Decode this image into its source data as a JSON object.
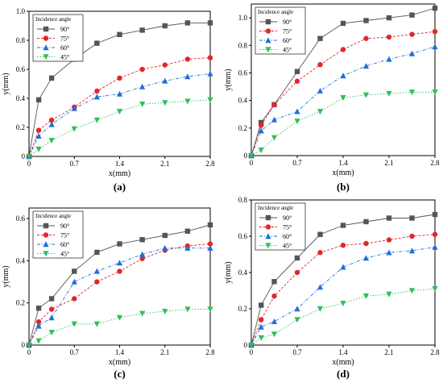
{
  "legend_title": "Incidence angle",
  "chart_data": [
    {
      "panel": "(a)",
      "type": "line",
      "xlabel": "x(mm)",
      "ylabel": "y(mm)",
      "xlim": [
        0,
        2.8
      ],
      "ylim": [
        0,
        1.0
      ],
      "xticks": [
        "0",
        "0.7",
        "1.4",
        "2.1",
        "2.8"
      ],
      "yticks": [
        "0",
        "0.2",
        "0.4",
        "0.6",
        "0.8",
        "1.0"
      ],
      "ytick_values": [
        0,
        0.2,
        0.4,
        0.6,
        0.8,
        1.0
      ],
      "x": [
        0,
        0.15,
        0.35,
        0.7,
        1.05,
        1.4,
        1.75,
        2.1,
        2.45,
        2.8
      ],
      "series": [
        {
          "name": "90°",
          "values": [
            0,
            0.39,
            0.54,
            0.67,
            0.78,
            0.84,
            0.87,
            0.9,
            0.92,
            0.92
          ]
        },
        {
          "name": "75°",
          "values": [
            0,
            0.18,
            0.25,
            0.34,
            0.45,
            0.54,
            0.6,
            0.63,
            0.67,
            0.68
          ]
        },
        {
          "name": "60°",
          "values": [
            0,
            0.14,
            0.22,
            0.33,
            0.41,
            0.43,
            0.48,
            0.52,
            0.55,
            0.57
          ]
        },
        {
          "name": "45°",
          "values": [
            0,
            0.05,
            0.11,
            0.19,
            0.25,
            0.31,
            0.36,
            0.37,
            0.38,
            0.39
          ]
        }
      ]
    },
    {
      "panel": "(b)",
      "type": "line",
      "xlabel": "x(mm)",
      "ylabel": "y(mm)",
      "xlim": [
        0,
        2.8
      ],
      "ylim": [
        0,
        1.1
      ],
      "xticks": [
        "0",
        "0.7",
        "1.4",
        "2.1",
        "2.8"
      ],
      "yticks": [
        "0",
        "0.2",
        "0.4",
        "0.6",
        "0.8",
        "1.0"
      ],
      "ytick_values": [
        0,
        0.2,
        0.4,
        0.6,
        0.8,
        1.0
      ],
      "x": [
        0,
        0.15,
        0.35,
        0.7,
        1.05,
        1.4,
        1.75,
        2.1,
        2.45,
        2.8
      ],
      "series": [
        {
          "name": "90°",
          "values": [
            0,
            0.24,
            0.37,
            0.61,
            0.85,
            0.96,
            0.98,
            1.0,
            1.02,
            1.07
          ]
        },
        {
          "name": "75°",
          "values": [
            0,
            0.22,
            0.37,
            0.54,
            0.66,
            0.77,
            0.85,
            0.86,
            0.88,
            0.9
          ]
        },
        {
          "name": "60°",
          "values": [
            0,
            0.18,
            0.26,
            0.32,
            0.47,
            0.58,
            0.65,
            0.7,
            0.74,
            0.79
          ]
        },
        {
          "name": "45°",
          "values": [
            0,
            0.04,
            0.13,
            0.25,
            0.32,
            0.42,
            0.44,
            0.45,
            0.46,
            0.46
          ]
        }
      ]
    },
    {
      "panel": "(c)",
      "type": "line",
      "xlabel": "x(mm)",
      "ylabel": "y(mm)",
      "xlim": [
        0,
        2.8
      ],
      "ylim": [
        0,
        0.65
      ],
      "xticks": [
        "0",
        "0.7",
        "1.4",
        "2.1",
        "2.8"
      ],
      "yticks": [
        "0",
        "0.2",
        "0.4",
        "0.6"
      ],
      "ytick_values": [
        0,
        0.2,
        0.4,
        0.6
      ],
      "x": [
        0,
        0.15,
        0.35,
        0.7,
        1.05,
        1.4,
        1.75,
        2.1,
        2.45,
        2.8
      ],
      "series": [
        {
          "name": "90°",
          "values": [
            0,
            0.175,
            0.22,
            0.35,
            0.44,
            0.48,
            0.5,
            0.52,
            0.54,
            0.57
          ]
        },
        {
          "name": "75°",
          "values": [
            0,
            0.11,
            0.17,
            0.22,
            0.3,
            0.35,
            0.41,
            0.45,
            0.47,
            0.48
          ]
        },
        {
          "name": "60°",
          "values": [
            0,
            0.09,
            0.13,
            0.3,
            0.35,
            0.39,
            0.43,
            0.46,
            0.46,
            0.46
          ]
        },
        {
          "name": "45°",
          "values": [
            0,
            0.02,
            0.06,
            0.1,
            0.1,
            0.13,
            0.15,
            0.16,
            0.17,
            0.17
          ]
        }
      ]
    },
    {
      "panel": "(d)",
      "type": "line",
      "xlabel": "x(mm)",
      "ylabel": "y(mm)",
      "xlim": [
        0,
        2.8
      ],
      "ylim": [
        0,
        0.8
      ],
      "xticks": [
        "0",
        "0.7",
        "1.4",
        "2.1",
        "2.8"
      ],
      "yticks": [
        "0",
        "0.2",
        "0.4",
        "0.6",
        "0.8"
      ],
      "ytick_values": [
        0,
        0.2,
        0.4,
        0.6,
        0.8
      ],
      "x": [
        0,
        0.15,
        0.35,
        0.7,
        1.05,
        1.4,
        1.75,
        2.1,
        2.45,
        2.8
      ],
      "series": [
        {
          "name": "90°",
          "values": [
            0,
            0.22,
            0.35,
            0.48,
            0.61,
            0.66,
            0.68,
            0.7,
            0.7,
            0.72
          ]
        },
        {
          "name": "75°",
          "values": [
            0,
            0.14,
            0.27,
            0.4,
            0.51,
            0.55,
            0.56,
            0.58,
            0.6,
            0.61
          ]
        },
        {
          "name": "60°",
          "values": [
            0,
            0.1,
            0.13,
            0.2,
            0.32,
            0.43,
            0.48,
            0.51,
            0.52,
            0.54
          ]
        },
        {
          "name": "45°",
          "values": [
            0,
            0.04,
            0.06,
            0.14,
            0.2,
            0.23,
            0.27,
            0.28,
            0.3,
            0.31
          ]
        }
      ]
    }
  ],
  "series_style": [
    {
      "color": "#555555",
      "dash": "",
      "marker": "square"
    },
    {
      "color": "#e3262a",
      "dash": "3,2",
      "marker": "circle"
    },
    {
      "color": "#1f6fd6",
      "dash": "4,2,1,2",
      "marker": "triangle-up"
    },
    {
      "color": "#2fbf5e",
      "dash": "1.5,2",
      "marker": "triangle-down"
    }
  ]
}
